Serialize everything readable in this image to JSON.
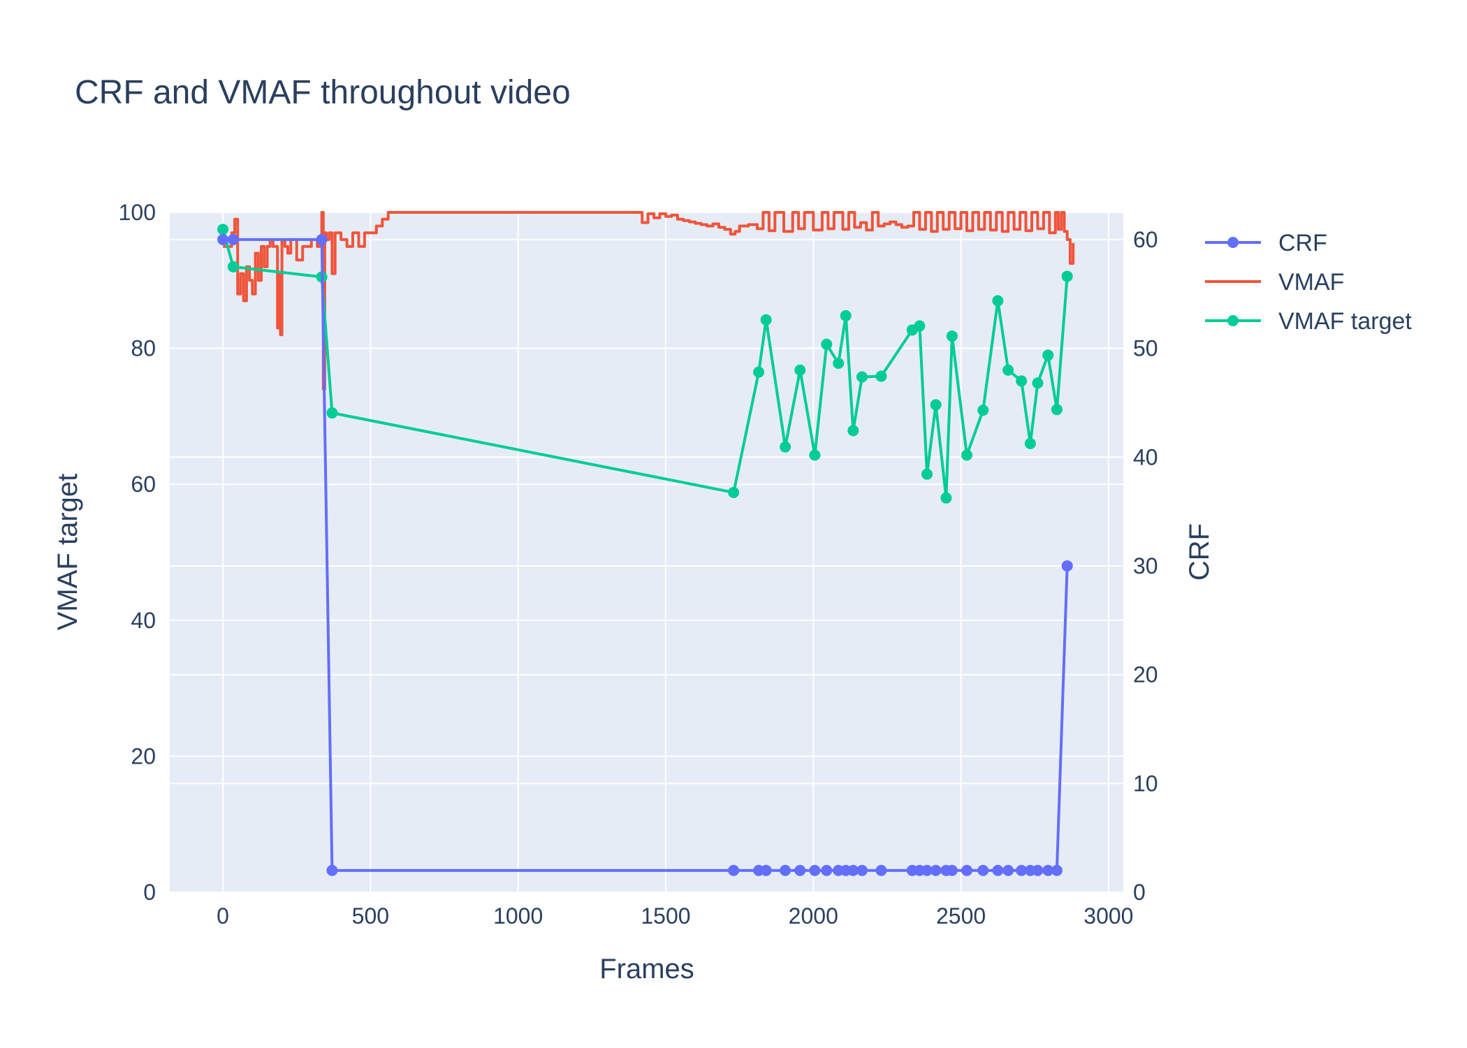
{
  "chart_data": {
    "type": "line",
    "title": "CRF and VMAF throughout video",
    "xlabel": "Frames",
    "ylabel": "VMAF target",
    "y2label": "CRF",
    "xlim": [
      -180,
      3050
    ],
    "ylim": [
      0,
      100
    ],
    "y2lim": [
      0,
      62.5
    ],
    "x_ticks": [
      0,
      500,
      1000,
      1500,
      2000,
      2500,
      3000
    ],
    "y_ticks": [
      0,
      20,
      40,
      60,
      80,
      100
    ],
    "y2_ticks": [
      0,
      10,
      20,
      30,
      40,
      50,
      60
    ],
    "grid": true,
    "legend_position": "right-top",
    "colors": {
      "crf": "#636efa",
      "vmaf": "#ef553b",
      "vmaf_target": "#00cc96",
      "plot_bg": "#e5ecf6",
      "grid": "#ffffff",
      "text": "#2a3f5f"
    },
    "series": [
      {
        "name": "CRF",
        "axis": "y2",
        "mode": "lines+markers",
        "x": [
          0,
          35,
          335,
          370,
          1730,
          1815,
          1840,
          1905,
          1955,
          2005,
          2045,
          2085,
          2110,
          2135,
          2165,
          2230,
          2335,
          2360,
          2385,
          2415,
          2450,
          2470,
          2520,
          2575,
          2625,
          2660,
          2705,
          2735,
          2760,
          2795,
          2825,
          2860
        ],
        "values": [
          60,
          60,
          60,
          2,
          2,
          2,
          2,
          2,
          2,
          2,
          2,
          2,
          2,
          2,
          2,
          2,
          2,
          2,
          2,
          2,
          2,
          2,
          2,
          2,
          2,
          2,
          2,
          2,
          2,
          2,
          2,
          30
        ]
      },
      {
        "name": "VMAF target",
        "axis": "y",
        "mode": "lines+markers",
        "x": [
          0,
          35,
          335,
          370,
          1730,
          1815,
          1840,
          1905,
          1955,
          2005,
          2045,
          2085,
          2110,
          2135,
          2165,
          2230,
          2335,
          2360,
          2385,
          2415,
          2450,
          2470,
          2520,
          2575,
          2625,
          2660,
          2705,
          2735,
          2760,
          2795,
          2825,
          2860
        ],
        "values": [
          97.5,
          92,
          90.5,
          70.5,
          58.8,
          76.5,
          84.2,
          65.5,
          76.8,
          64.3,
          80.6,
          77.8,
          84.8,
          67.9,
          75.8,
          75.9,
          82.7,
          83.3,
          61.5,
          71.7,
          58,
          81.8,
          64.3,
          70.9,
          87,
          76.8,
          75.2,
          66,
          74.9,
          79,
          71,
          90.6
        ]
      },
      {
        "name": "VMAF",
        "axis": "y",
        "mode": "lines",
        "x": [
          0,
          30,
          40,
          50,
          60,
          70,
          80,
          90,
          100,
          110,
          120,
          130,
          140,
          150,
          160,
          170,
          180,
          185,
          190,
          195,
          200,
          210,
          220,
          230,
          250,
          270,
          300,
          320,
          330,
          335,
          340,
          345,
          350,
          360,
          370,
          380,
          400,
          420,
          440,
          460,
          480,
          500,
          520,
          540,
          560,
          600,
          800,
          1000,
          1200,
          1400,
          1420,
          1440,
          1460,
          1480,
          1500,
          1520,
          1540,
          1560,
          1580,
          1600,
          1620,
          1640,
          1660,
          1680,
          1700,
          1720,
          1735,
          1750,
          1780,
          1810,
          1830,
          1850,
          1870,
          1900,
          1930,
          1950,
          1970,
          2000,
          2030,
          2050,
          2070,
          2100,
          2120,
          2140,
          2160,
          2180,
          2200,
          2220,
          2240,
          2260,
          2280,
          2300,
          2320,
          2340,
          2360,
          2380,
          2400,
          2420,
          2440,
          2460,
          2480,
          2500,
          2520,
          2540,
          2560,
          2580,
          2600,
          2620,
          2640,
          2660,
          2680,
          2700,
          2720,
          2740,
          2760,
          2780,
          2800,
          2820,
          2830,
          2840,
          2850,
          2860,
          2870,
          2880
        ],
        "values": [
          95,
          97,
          99,
          88,
          91,
          87,
          92,
          90,
          88,
          94,
          90,
          95,
          92,
          95,
          96,
          95,
          95,
          83,
          91,
          82,
          96,
          95,
          94,
          96,
          93,
          95,
          96,
          95,
          96,
          100,
          74,
          97,
          96,
          97,
          91,
          97,
          96,
          95,
          97,
          95,
          97,
          97,
          98,
          99,
          100,
          100,
          100,
          100,
          100,
          100,
          98.5,
          99.8,
          99.2,
          99.8,
          99.4,
          99.6,
          99,
          98.8,
          98.6,
          98.4,
          98.2,
          98,
          98.3,
          97.8,
          97.5,
          96.8,
          97.2,
          98,
          98.2,
          97.6,
          100,
          97.3,
          100,
          97.2,
          100,
          97.6,
          100,
          97.4,
          100,
          97.6,
          100,
          97.5,
          100,
          97.8,
          98.5,
          97.4,
          100,
          98,
          98.3,
          98.6,
          98.2,
          97.8,
          98,
          100,
          97.5,
          100,
          97.2,
          100,
          97.5,
          100,
          97.6,
          100,
          97.3,
          100,
          97.5,
          100,
          97.4,
          100,
          97.2,
          100,
          97.5,
          100,
          97.3,
          100,
          97.6,
          100,
          97,
          100,
          97.5,
          100,
          97.2,
          96,
          92.5,
          95.5
        ]
      }
    ]
  }
}
